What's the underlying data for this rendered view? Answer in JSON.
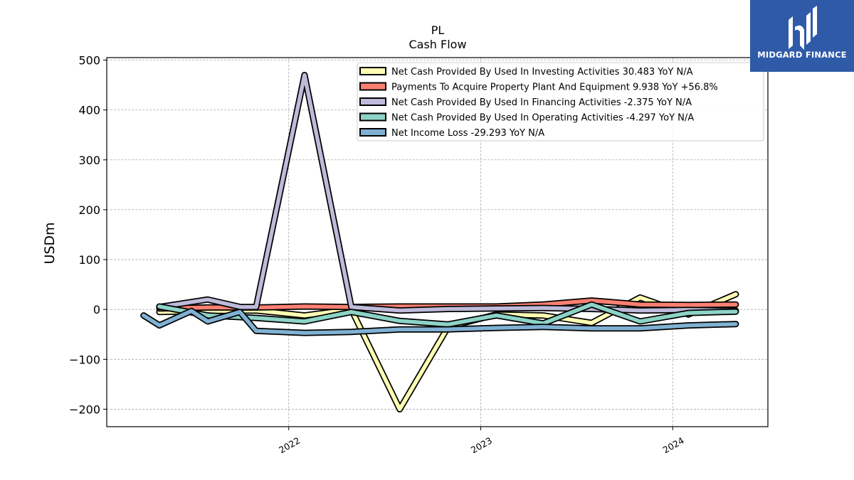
{
  "chart_data": {
    "type": "line",
    "title": "PL",
    "subtitle": "Cash Flow",
    "ylabel": "USDm",
    "xlabel": "",
    "ylim": [
      -235,
      505
    ],
    "xlim": [
      "2021-01-20",
      "2024-06-30"
    ],
    "yticks": [
      -200,
      -100,
      0,
      100,
      200,
      300,
      400,
      500
    ],
    "ytick_labels": [
      "−200",
      "−100",
      "0",
      "100",
      "200",
      "300",
      "400",
      "500"
    ],
    "xticks": [
      "2022-01-01",
      "2023-01-01",
      "2024-01-01"
    ],
    "xtick_labels": [
      "2022",
      "2023",
      "2024"
    ],
    "grid": true,
    "legend_position": "top-right",
    "series": [
      {
        "name": "Net Cash Provided By Used In Investing Activities",
        "legend": "Net Cash Provided By Used In Investing Activities  30.483 YoY N/A",
        "color": "#ffffb3",
        "x": [
          "2021-04-30",
          "2021-07-31",
          "2021-10-31",
          "2022-01-31",
          "2022-04-30",
          "2022-07-31",
          "2022-10-31",
          "2023-01-31",
          "2023-04-30",
          "2023-07-31",
          "2023-10-31",
          "2024-01-31",
          "2024-04-30"
        ],
        "y": [
          -5,
          -3,
          -2,
          -12,
          0,
          -200,
          -35,
          -10,
          -12,
          -27,
          24,
          -10,
          30.483
        ]
      },
      {
        "name": "Payments To Acquire Property Plant And Equipment",
        "legend": "Payments To Acquire Property Plant And Equipment  9.938 YoY +56.8%",
        "color": "#fb8072",
        "x": [
          "2021-04-30",
          "2021-07-31",
          "2021-10-31",
          "2022-01-31",
          "2022-04-30",
          "2022-07-31",
          "2022-10-31",
          "2023-01-31",
          "2023-04-30",
          "2023-07-31",
          "2023-10-31",
          "2024-01-31",
          "2024-04-30"
        ],
        "y": [
          2,
          4,
          4,
          6,
          5,
          6,
          6,
          6,
          10,
          18,
          10,
          9,
          9.938
        ]
      },
      {
        "name": "Net Cash Provided By Used In Financing Activities",
        "legend": "Net Cash Provided By Used In Financing Activities  -2.375 YoY N/A",
        "color": "#bebada",
        "x": [
          "2021-04-30",
          "2021-07-31",
          "2021-10-01",
          "2021-10-31",
          "2022-01-31",
          "2022-04-30",
          "2022-07-31",
          "2022-10-31",
          "2023-01-31",
          "2023-04-30",
          "2023-07-31",
          "2023-10-31",
          "2024-01-31",
          "2024-04-30"
        ],
        "y": [
          5,
          20,
          5,
          5,
          470,
          5,
          -2,
          1,
          2,
          3,
          1,
          -2,
          -1,
          -2.375
        ]
      },
      {
        "name": "Net Cash Provided By Used In Operating Activities",
        "legend": "Net Cash Provided By Used In Operating Activities  -4.297 YoY N/A",
        "color": "#8dd3c7",
        "x": [
          "2021-04-30",
          "2021-07-31",
          "2021-10-31",
          "2022-01-31",
          "2022-04-30",
          "2022-07-31",
          "2022-10-31",
          "2023-01-31",
          "2023-04-30",
          "2023-07-31",
          "2023-10-31",
          "2024-01-31",
          "2024-04-30"
        ],
        "y": [
          6,
          -12,
          -17,
          -24,
          -5,
          -23,
          -30,
          -12,
          -28,
          10,
          -24,
          -7,
          -4.297
        ]
      },
      {
        "name": "Net Income Loss",
        "legend": "Net Income Loss  -29.293 YoY N/A",
        "color": "#80b1d3",
        "x": [
          "2021-03-31",
          "2021-04-30",
          "2021-06-30",
          "2021-07-31",
          "2021-09-30",
          "2021-10-31",
          "2022-01-31",
          "2022-04-30",
          "2022-07-31",
          "2022-10-31",
          "2023-01-31",
          "2023-04-30",
          "2023-07-31",
          "2023-10-31",
          "2024-01-31",
          "2024-04-30"
        ],
        "y": [
          -12,
          -32,
          -3,
          -24,
          -5,
          -43,
          -47,
          -45,
          -40,
          -40,
          -37,
          -35,
          -38,
          -38,
          -32,
          -29.293
        ]
      }
    ]
  },
  "logo": {
    "text": "MIDGARD FINANCE",
    "color": "#2f5aa8"
  }
}
